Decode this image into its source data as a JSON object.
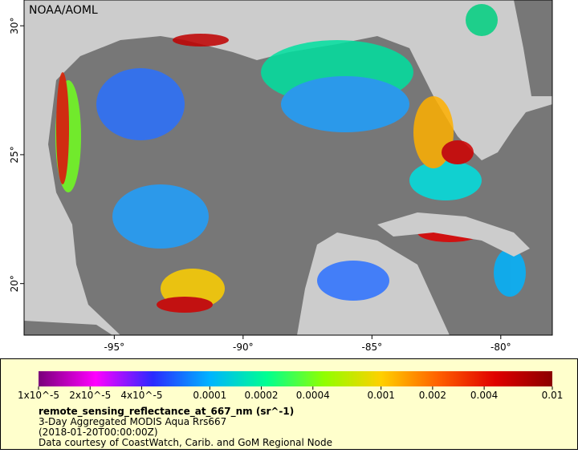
{
  "map": {
    "credit": "NOAA/AOML",
    "xlim": [
      -98.5,
      -78
    ],
    "ylim": [
      18,
      31
    ],
    "xticks": [
      {
        "value": -95,
        "label": "-95°"
      },
      {
        "value": -90,
        "label": "-90°"
      },
      {
        "value": -85,
        "label": "-85°"
      },
      {
        "value": -80,
        "label": "-80°"
      }
    ],
    "yticks": [
      {
        "value": 20,
        "label": "20°"
      },
      {
        "value": 25,
        "label": "25°"
      },
      {
        "value": 30,
        "label": "30°"
      }
    ]
  },
  "colorbar": {
    "log_scale": true,
    "lim": [
      1e-05,
      0.01
    ],
    "colors": [
      "#7a007a",
      "#ff00ff",
      "#2a2aff",
      "#00b4ff",
      "#00ff90",
      "#90ff00",
      "#ffd000",
      "#ff6000",
      "#e00000",
      "#8b0000"
    ],
    "ticks": [
      {
        "value": 1e-05,
        "label": "1x10^-5"
      },
      {
        "value": 2e-05,
        "label": "2x10^-5"
      },
      {
        "value": 4e-05,
        "label": "4x10^-5"
      },
      {
        "value": 0.0001,
        "label": "0.0001"
      },
      {
        "value": 0.0002,
        "label": "0.0002"
      },
      {
        "value": 0.0004,
        "label": "0.0004"
      },
      {
        "value": 0.001,
        "label": "0.001"
      },
      {
        "value": 0.002,
        "label": "0.002"
      },
      {
        "value": 0.004,
        "label": "0.004"
      },
      {
        "value": 0.01,
        "label": "0.01"
      }
    ]
  },
  "legend": {
    "variable": "remote_sensing_reflectance_at_667_nm (sr^-1)",
    "product": "3-Day Aggregated MODIS Aqua Rrs667",
    "time": "(2018-01-20T00:00:00Z)",
    "courtesy": "Data courtesy of CoastWatch, Carib. and GoM Regional Node"
  }
}
